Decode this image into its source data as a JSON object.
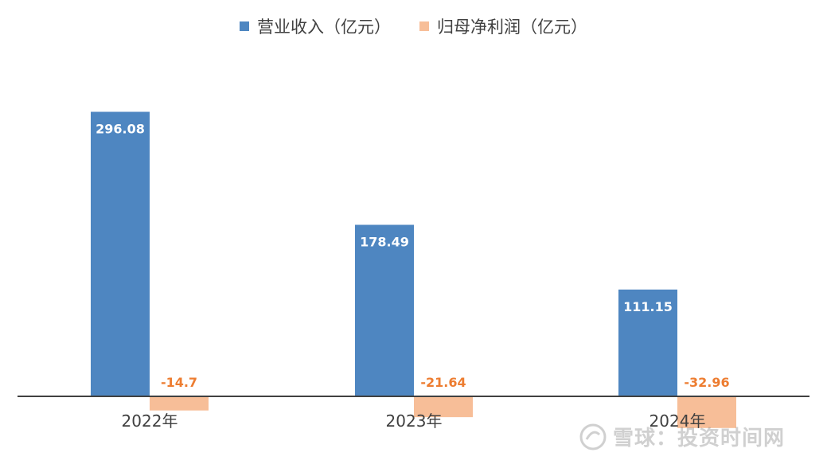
{
  "chart_data": {
    "type": "bar",
    "categories": [
      "2022年",
      "2023年",
      "2024年"
    ],
    "series": [
      {
        "name": "营业收入（亿元）",
        "values": [
          296.08,
          178.49,
          111.15
        ],
        "labels": [
          "296.08",
          "178.49",
          "111.15"
        ],
        "color": "#4e86c1"
      },
      {
        "name": "归母净利润（亿元）",
        "values": [
          -14.7,
          -21.64,
          -32.96
        ],
        "labels": [
          "-14.7",
          "-21.64",
          "-32.96"
        ],
        "color": "#f7be98"
      }
    ],
    "title": "",
    "xlabel": "",
    "ylabel": "",
    "ylim": [
      -35,
      330
    ],
    "grid": false,
    "legend_position": "top-center",
    "label_colors": {
      "positive": "#ffffff",
      "negative": "#ed7d31"
    },
    "axis_color": "#404040"
  },
  "watermark": {
    "text": "雪球：投资时间网"
  }
}
